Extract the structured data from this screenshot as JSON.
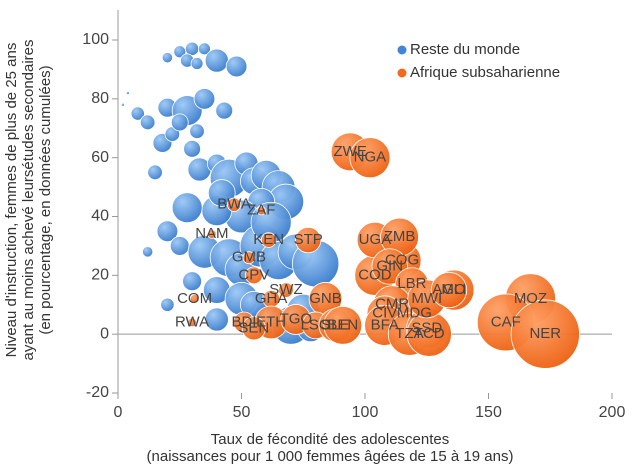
{
  "chart_data": {
    "type": "bubble",
    "ylabel": [
      "Niveau d'instruction, femmes de plus de 25 ans",
      "ayant au moins achevé leursétudes secondaires",
      "(en pourcentage, en données cumulées)"
    ],
    "xlabel": [
      "Taux de fécondité des adolescentes",
      "(naissances pour 1 000 femmes âgées de 15 à 19 ans)"
    ],
    "xlim": [
      0,
      200
    ],
    "xticks": [
      0,
      50,
      100,
      150,
      200
    ],
    "ylim": [
      -20,
      100
    ],
    "yticks": [
      -20,
      0,
      20,
      40,
      60,
      80,
      100
    ],
    "legend": "upper right",
    "series": [
      {
        "name": "Reste du monde",
        "color": "#3f86d9",
        "x": [
          25,
          30,
          35,
          28,
          40,
          48,
          20,
          32,
          2,
          4,
          8,
          12,
          20,
          28,
          35,
          43,
          32,
          30,
          18,
          22,
          25,
          33,
          40,
          45,
          52,
          55,
          60,
          65,
          68,
          58,
          50,
          40,
          28,
          20,
          25,
          12,
          35,
          45,
          50,
          58,
          65,
          72,
          80,
          30,
          40,
          50,
          60,
          70,
          75,
          20,
          40,
          55,
          15,
          42,
          62,
          78
        ],
        "values": [
          96,
          97,
          97,
          93,
          93,
          91,
          94,
          92,
          78,
          82,
          75,
          72,
          77,
          76,
          80,
          76,
          69,
          63,
          65,
          68,
          72,
          56,
          58,
          53,
          58,
          52,
          54,
          50,
          45,
          45,
          40,
          42,
          43,
          35,
          30,
          28,
          28,
          26,
          22,
          30,
          25,
          28,
          24,
          18,
          15,
          12,
          5,
          3,
          8,
          10,
          5,
          10,
          55,
          48,
          38,
          2
        ],
        "sizes": [
          4,
          5,
          4,
          5,
          15,
          12,
          3,
          4,
          0.3,
          0.3,
          5,
          6,
          10,
          25,
          12,
          8,
          6,
          8,
          10,
          6,
          8,
          15,
          10,
          40,
          15,
          20,
          25,
          30,
          35,
          20,
          30,
          25,
          25,
          12,
          10,
          3,
          30,
          40,
          30,
          50,
          40,
          35,
          60,
          10,
          20,
          30,
          25,
          40,
          30,
          5,
          15,
          20,
          6,
          20,
          45,
          20
        ]
      },
      {
        "name": "Afrique subsaharienne",
        "color": "#f26a1b",
        "labels": [
          "ZWE",
          "NGA",
          "BWA",
          "ZAF",
          "KEN",
          "STP",
          "NAM",
          "GMB",
          "CPV",
          "SWZ",
          "GHA",
          "COM",
          "RWA",
          "BDI",
          "ETH",
          "SEN",
          "TGO",
          "GNB",
          "LSO",
          "SLE",
          "BEN",
          "COD",
          "UGA",
          "COG",
          "ZMB",
          "GIN",
          "LBR",
          "CMR",
          "CIV",
          "MDG",
          "BFA",
          "TZA",
          "SSD",
          "TCD",
          "MWI",
          "MLI",
          "AGO",
          "MOZ",
          "CAF",
          "NER"
        ],
        "x": [
          94,
          102,
          47,
          58,
          61,
          77,
          38,
          53,
          55,
          68,
          62,
          31,
          30,
          51,
          62,
          55,
          72,
          84,
          80,
          88,
          91,
          104,
          104,
          115,
          114,
          110,
          119,
          111,
          108,
          120,
          108,
          118,
          125,
          126,
          125,
          136,
          134,
          167,
          157,
          173
        ],
        "values": [
          62,
          60,
          44,
          42,
          32,
          32,
          34,
          26,
          20,
          15,
          12,
          12,
          4,
          4,
          4,
          2,
          5,
          12,
          3,
          3,
          3,
          20,
          32,
          25,
          33,
          23,
          17,
          10,
          7,
          7,
          3,
          0,
          2,
          0,
          12,
          15,
          15,
          12,
          4,
          0
        ],
        "sizes": [
          40,
          45,
          5,
          2,
          6,
          18,
          2,
          4,
          8,
          6,
          8,
          2,
          2,
          12,
          30,
          15,
          25,
          30,
          20,
          30,
          40,
          45,
          35,
          40,
          40,
          35,
          30,
          40,
          35,
          30,
          45,
          50,
          45,
          55,
          40,
          45,
          35,
          70,
          90,
          130
        ]
      }
    ]
  }
}
